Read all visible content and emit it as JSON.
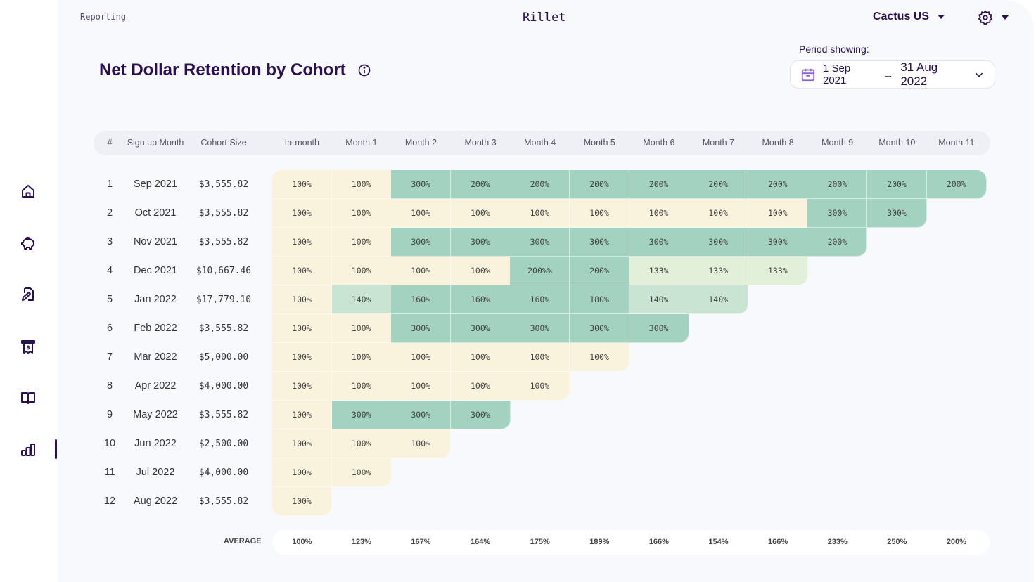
{
  "header": {
    "breadcrumb": "Reporting",
    "brand": "Rillet",
    "org_name": "Cactus US",
    "settings_icon": "gear-icon"
  },
  "page": {
    "title": "Net Dollar Retention by Cohort",
    "info_icon": "info-icon"
  },
  "period": {
    "label": "Period showing:",
    "start": "1 Sep 2021",
    "arrow": "→",
    "end": "31 Aug 2022",
    "icon": "calendar-icon"
  },
  "sidebar": {
    "items": [
      {
        "name": "home",
        "icon": "home-icon"
      },
      {
        "name": "savings",
        "icon": "piggy-bank-icon"
      },
      {
        "name": "contracts",
        "icon": "document-pen-icon"
      },
      {
        "name": "invoices",
        "icon": "receipt-icon"
      },
      {
        "name": "ledger",
        "icon": "book-icon"
      },
      {
        "name": "reporting",
        "icon": "bar-chart-icon",
        "active": true
      }
    ]
  },
  "colors": {
    "brand": "#2a1050",
    "cell_100": "#f9f2dc",
    "cell_133": "#e2f0da",
    "cell_140": "#c9e4d2",
    "cell_high": "#a3d2c1"
  },
  "table": {
    "columns": [
      "#",
      "Sign up Month",
      "Cohort Size",
      "In-month",
      "Month 1",
      "Month 2",
      "Month 3",
      "Month 4",
      "Month 5",
      "Month 6",
      "Month 7",
      "Month 8",
      "Month 9",
      "Month 10",
      "Month 11"
    ],
    "rows": [
      {
        "num": "1",
        "month": "Sep 2021",
        "size": "$3,555.82",
        "values": [
          "100%",
          "100%",
          "300%",
          "200%",
          "200%",
          "200%",
          "200%",
          "200%",
          "200%",
          "200%",
          "200%",
          "200%"
        ]
      },
      {
        "num": "2",
        "month": "Oct 2021",
        "size": "$3,555.82",
        "values": [
          "100%",
          "100%",
          "100%",
          "100%",
          "100%",
          "100%",
          "100%",
          "100%",
          "100%",
          "300%",
          "300%"
        ]
      },
      {
        "num": "3",
        "month": "Nov 2021",
        "size": "$3,555.82",
        "values": [
          "100%",
          "100%",
          "300%",
          "300%",
          "300%",
          "300%",
          "300%",
          "300%",
          "300%",
          "200%"
        ]
      },
      {
        "num": "4",
        "month": "Dec 2021",
        "size": "$10,667.46",
        "values": [
          "100%",
          "100%",
          "100%",
          "100%",
          "200%%",
          "200%",
          "133%",
          "133%",
          "133%"
        ]
      },
      {
        "num": "5",
        "month": "Jan 2022",
        "size": "$17,779.10",
        "values": [
          "100%",
          "140%",
          "160%",
          "160%",
          "160%",
          "180%",
          "140%",
          "140%"
        ]
      },
      {
        "num": "6",
        "month": "Feb 2022",
        "size": "$3,555.82",
        "values": [
          "100%",
          "100%",
          "300%",
          "300%",
          "300%",
          "300%",
          "300%"
        ]
      },
      {
        "num": "7",
        "month": "Mar 2022",
        "size": "$5,000.00",
        "values": [
          "100%",
          "100%",
          "100%",
          "100%",
          "100%",
          "100%"
        ]
      },
      {
        "num": "8",
        "month": "Apr 2022",
        "size": "$4,000.00",
        "values": [
          "100%",
          "100%",
          "100%",
          "100%",
          "100%"
        ]
      },
      {
        "num": "9",
        "month": "May 2022",
        "size": "$3,555.82",
        "values": [
          "100%",
          "300%",
          "300%",
          "300%"
        ]
      },
      {
        "num": "10",
        "month": "Jun 2022",
        "size": "$2,500.00",
        "values": [
          "100%",
          "100%",
          "100%"
        ]
      },
      {
        "num": "11",
        "month": "Jul 2022",
        "size": "$4,000.00",
        "values": [
          "100%",
          "100%"
        ]
      },
      {
        "num": "12",
        "month": "Aug 2022",
        "size": "$3,555.82",
        "values": [
          "100%"
        ]
      }
    ],
    "average_label": "AVERAGE",
    "averages": [
      "100%",
      "123%",
      "167%",
      "164%",
      "175%",
      "189%",
      "166%",
      "154%",
      "166%",
      "233%",
      "250%",
      "200%"
    ]
  }
}
